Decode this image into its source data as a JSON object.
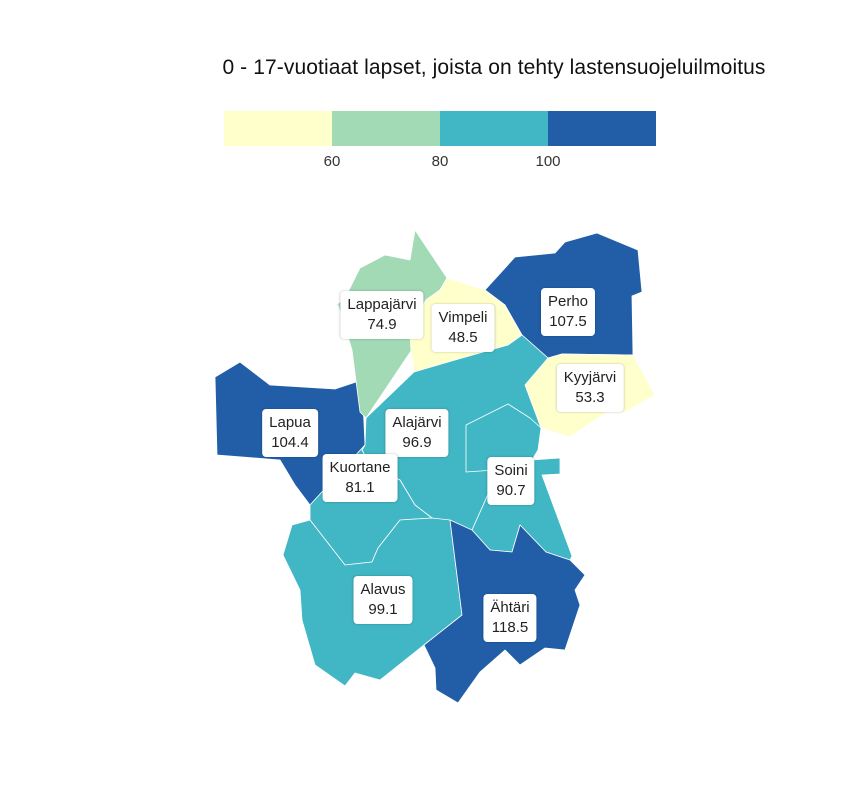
{
  "title": "0 - 17-vuotiaat lapset, joista on tehty lastensuojeluilmoitus",
  "legend": {
    "breaks": [
      "60",
      "80",
      "100"
    ],
    "classes": [
      {
        "color": "#ffffcc"
      },
      {
        "color": "#a1dab4"
      },
      {
        "color": "#41b6c4"
      },
      {
        "color": "#225ea8"
      }
    ]
  },
  "regions": [
    {
      "name": "Lappajärvi",
      "value": "74.9",
      "color": "#a1dab4"
    },
    {
      "name": "Vimpeli",
      "value": "48.5",
      "color": "#ffffcc"
    },
    {
      "name": "Perho",
      "value": "107.5",
      "color": "#225ea8"
    },
    {
      "name": "Kyyjärvi",
      "value": "53.3",
      "color": "#ffffcc"
    },
    {
      "name": "Lapua",
      "value": "104.4",
      "color": "#225ea8"
    },
    {
      "name": "Alajärvi",
      "value": "96.9",
      "color": "#41b6c4"
    },
    {
      "name": "Kuortane",
      "value": "81.1",
      "color": "#41b6c4"
    },
    {
      "name": "Soini",
      "value": "90.7",
      "color": "#41b6c4"
    },
    {
      "name": "Alavus",
      "value": "99.1",
      "color": "#41b6c4"
    },
    {
      "name": "Ähtäri",
      "value": "118.5",
      "color": "#225ea8"
    }
  ]
}
